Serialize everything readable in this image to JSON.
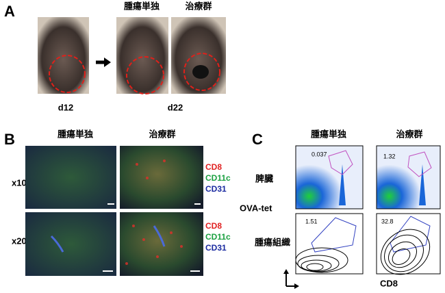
{
  "panel_a": {
    "label": "A",
    "headers": [
      "腫瘍単独",
      "治療群"
    ],
    "day_labels": [
      "d12",
      "d22"
    ]
  },
  "panel_b": {
    "label": "B",
    "headers": [
      "腫瘍単独",
      "治療群"
    ],
    "rows": [
      "x10",
      "x20"
    ],
    "legend": [
      "CD8",
      "CD11c",
      "CD31"
    ]
  },
  "panel_c": {
    "label": "C",
    "headers": [
      "腫瘍単独",
      "治療群"
    ],
    "rows": [
      "脾臓",
      "腫瘍組織"
    ],
    "y_axis_label": "OVA-tet",
    "x_axis_label": "CD8",
    "gate_values": [
      "0.037",
      "1.32",
      "1.51",
      "32.8"
    ]
  }
}
